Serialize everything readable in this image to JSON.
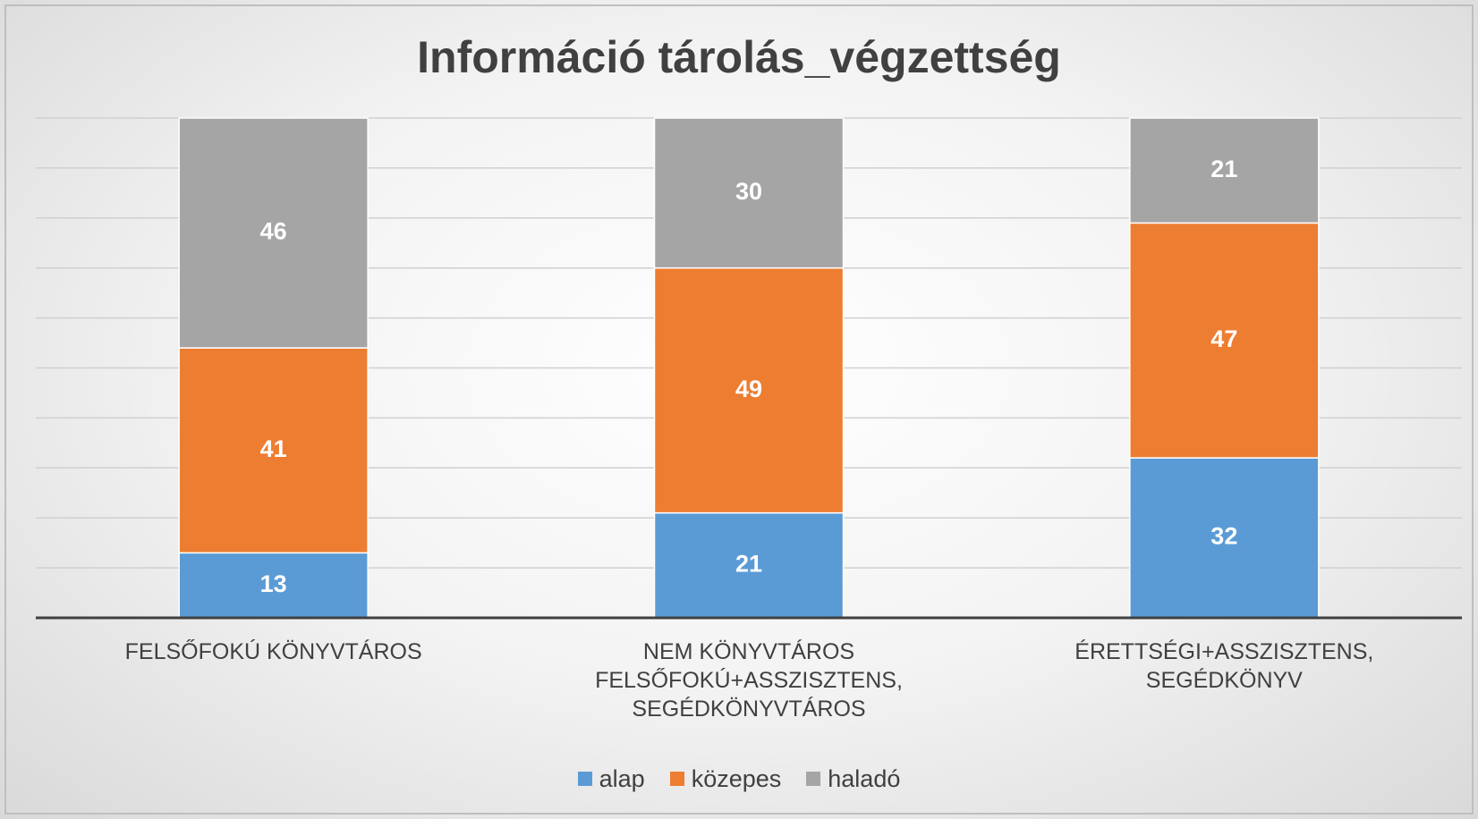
{
  "chart_data": {
    "type": "stacked_bar_100",
    "title": "Információ tárolás_végzettség",
    "categories": [
      "FELSŐFOKÚ KÖNYVTÁROS",
      "NEM KÖNYVTÁROS FELSŐFOKÚ+ASSZISZTENS, SEGÉDKÖNYVTÁROS",
      "ÉRETTSÉGI+ASSZISZTENS, SEGÉDKÖNYV"
    ],
    "series": [
      {
        "name": "alap",
        "color": "#5b9bd5",
        "values": [
          13,
          21,
          32
        ]
      },
      {
        "name": "közepes",
        "color": "#ed7d31",
        "values": [
          41,
          49,
          47
        ]
      },
      {
        "name": "haladó",
        "color": "#a5a5a5",
        "values": [
          46,
          30,
          21
        ]
      }
    ],
    "ylim": [
      0,
      100
    ],
    "yticks": [
      0,
      10,
      20,
      30,
      40,
      50,
      60,
      70,
      80,
      90,
      100
    ],
    "grid": true,
    "legend": "bottom"
  }
}
